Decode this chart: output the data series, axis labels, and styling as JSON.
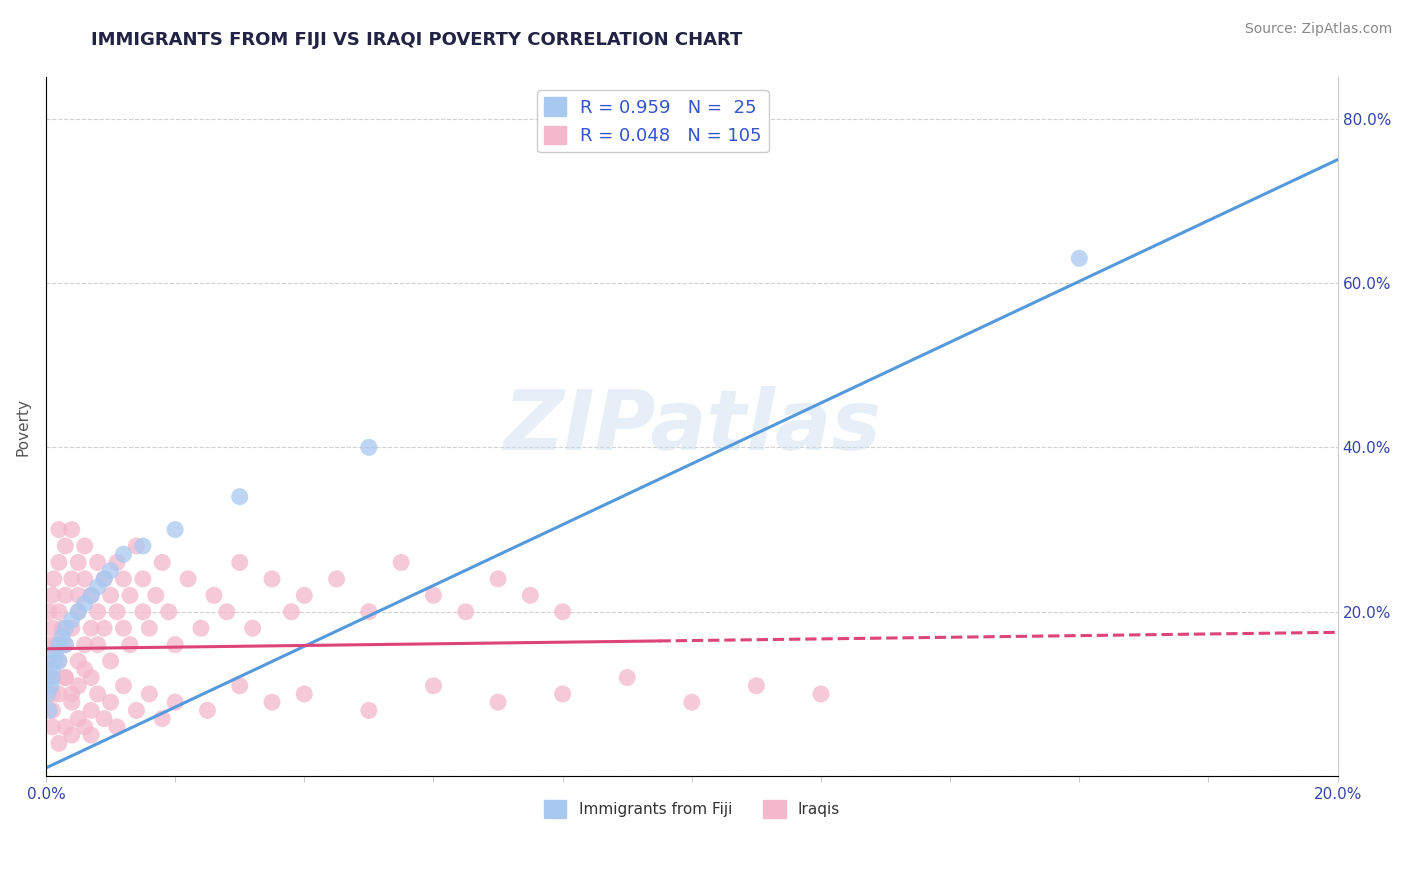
{
  "title": "IMMIGRANTS FROM FIJI VS IRAQI POVERTY CORRELATION CHART",
  "source_text": "Source: ZipAtlas.com",
  "ylabel": "Poverty",
  "watermark": "ZIPatlas",
  "xlim": [
    0.0,
    0.2
  ],
  "ylim": [
    0.0,
    0.85
  ],
  "fiji_R": 0.959,
  "fiji_N": 25,
  "iraqi_R": 0.048,
  "iraqi_N": 105,
  "fiji_color": "#a8c8f0",
  "iraqi_color": "#f4b8cc",
  "fiji_line_color": "#5599dd",
  "iraqi_line_color": "#dd4477",
  "fiji_line_x0": 0.0,
  "fiji_line_y0": 0.01,
  "fiji_line_x1": 0.2,
  "fiji_line_y1": 0.75,
  "iraqi_line_x0": 0.0,
  "iraqi_line_y0": 0.155,
  "iraqi_line_x1_solid": 0.095,
  "iraqi_line_x1": 0.2,
  "iraqi_line_y1": 0.175,
  "fiji_scatter_x": [
    0.0003,
    0.0005,
    0.0008,
    0.001,
    0.001,
    0.0012,
    0.0015,
    0.002,
    0.002,
    0.0025,
    0.003,
    0.003,
    0.004,
    0.005,
    0.006,
    0.007,
    0.008,
    0.009,
    0.01,
    0.012,
    0.015,
    0.02,
    0.03,
    0.05,
    0.16
  ],
  "fiji_scatter_y": [
    0.1,
    0.08,
    0.11,
    0.13,
    0.12,
    0.14,
    0.15,
    0.16,
    0.14,
    0.17,
    0.18,
    0.16,
    0.19,
    0.2,
    0.21,
    0.22,
    0.23,
    0.24,
    0.25,
    0.27,
    0.28,
    0.3,
    0.34,
    0.4,
    0.63
  ],
  "iraqi_scatter_x": [
    0.0003,
    0.0005,
    0.0005,
    0.0007,
    0.001,
    0.001,
    0.001,
    0.0012,
    0.0015,
    0.002,
    0.002,
    0.002,
    0.002,
    0.0025,
    0.003,
    0.003,
    0.003,
    0.003,
    0.004,
    0.004,
    0.004,
    0.004,
    0.005,
    0.005,
    0.005,
    0.005,
    0.006,
    0.006,
    0.006,
    0.007,
    0.007,
    0.007,
    0.008,
    0.008,
    0.008,
    0.009,
    0.009,
    0.01,
    0.01,
    0.011,
    0.011,
    0.012,
    0.012,
    0.013,
    0.013,
    0.014,
    0.015,
    0.015,
    0.016,
    0.017,
    0.018,
    0.019,
    0.02,
    0.022,
    0.024,
    0.026,
    0.028,
    0.03,
    0.032,
    0.035,
    0.038,
    0.04,
    0.045,
    0.05,
    0.055,
    0.06,
    0.065,
    0.07,
    0.075,
    0.08,
    0.001,
    0.001,
    0.002,
    0.002,
    0.003,
    0.003,
    0.004,
    0.004,
    0.005,
    0.005,
    0.006,
    0.006,
    0.007,
    0.007,
    0.008,
    0.009,
    0.01,
    0.011,
    0.012,
    0.014,
    0.016,
    0.018,
    0.02,
    0.025,
    0.03,
    0.035,
    0.04,
    0.05,
    0.06,
    0.07,
    0.08,
    0.09,
    0.1,
    0.11,
    0.12
  ],
  "iraqi_scatter_y": [
    0.14,
    0.16,
    0.2,
    0.12,
    0.18,
    0.22,
    0.1,
    0.24,
    0.16,
    0.2,
    0.26,
    0.14,
    0.3,
    0.18,
    0.22,
    0.12,
    0.28,
    0.16,
    0.24,
    0.1,
    0.3,
    0.18,
    0.22,
    0.26,
    0.14,
    0.2,
    0.28,
    0.16,
    0.24,
    0.18,
    0.22,
    0.12,
    0.26,
    0.2,
    0.16,
    0.24,
    0.18,
    0.22,
    0.14,
    0.26,
    0.2,
    0.24,
    0.18,
    0.22,
    0.16,
    0.28,
    0.2,
    0.24,
    0.18,
    0.22,
    0.26,
    0.2,
    0.16,
    0.24,
    0.18,
    0.22,
    0.2,
    0.26,
    0.18,
    0.24,
    0.2,
    0.22,
    0.24,
    0.2,
    0.26,
    0.22,
    0.2,
    0.24,
    0.22,
    0.2,
    0.06,
    0.08,
    0.04,
    0.1,
    0.06,
    0.12,
    0.05,
    0.09,
    0.07,
    0.11,
    0.06,
    0.13,
    0.08,
    0.05,
    0.1,
    0.07,
    0.09,
    0.06,
    0.11,
    0.08,
    0.1,
    0.07,
    0.09,
    0.08,
    0.11,
    0.09,
    0.1,
    0.08,
    0.11,
    0.09,
    0.1,
    0.12,
    0.09,
    0.11,
    0.1
  ],
  "background_color": "#ffffff",
  "grid_color": "#cccccc",
  "title_color": "#222244",
  "title_fontsize": 13,
  "axis_label_color": "#555555"
}
